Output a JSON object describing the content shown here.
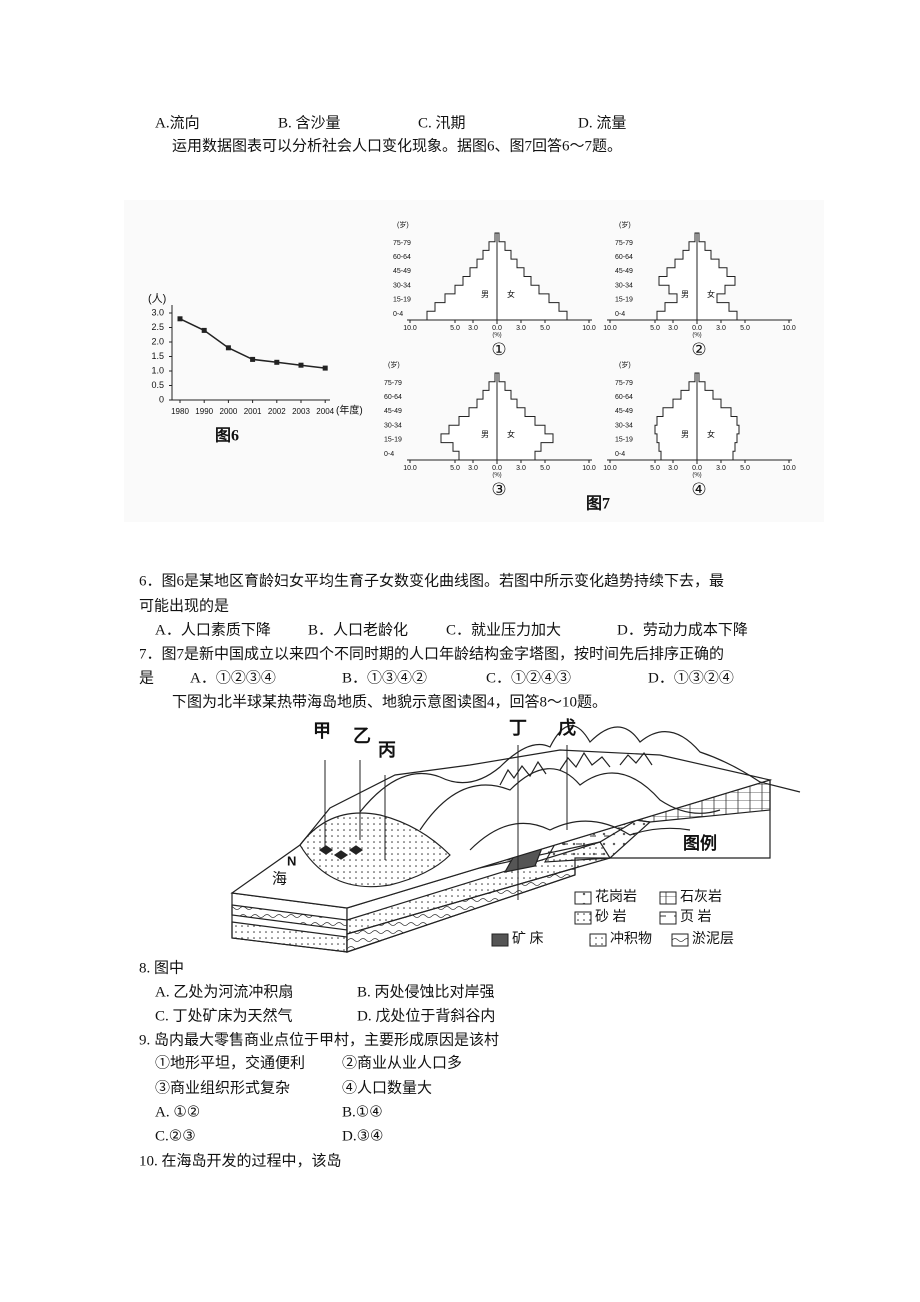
{
  "questions": {
    "q5_options": [
      "A.流向",
      "B. 含沙量",
      "C. 汛期",
      "D. 流量"
    ],
    "intro_6_7": "运用数据图表可以分析社会人口变化现象。据图6、图7回答6～7题。",
    "q6": {
      "stem": [
        "6．图6是某地区育龄妇女平均生育子女数变化曲线图。若图中所示变化趋势持续下去，最",
        "可能出现的是"
      ],
      "options": [
        "A．人口素质下降",
        "B．人口老龄化",
        "C．就业压力加大",
        "D．劳动力成本下降"
      ]
    },
    "q7": {
      "stem": [
        "7．图7是新中国成立以来四个不同时期的人口年龄结构金字塔图，按时间先后排序正确的",
        "是"
      ],
      "options": [
        "A．①②③④",
        "B．①③④②",
        "C．①②④③",
        "D．①③②④"
      ]
    },
    "intro_8_10": "下图为北半球某热带海岛地质、地貌示意图读图4，回答8～10题。",
    "q8": {
      "stem": "8. 图中",
      "options": [
        "A. 乙处为河流冲积扇",
        "B. 丙处侵蚀比对岸强",
        "C. 丁处矿床为天然气",
        "D. 戊处位于背斜谷内"
      ]
    },
    "q9": {
      "stem": "9. 岛内最大零售商业点位于甲村，主要形成原因是该村",
      "choices": [
        "①地形平坦，交通便利",
        "②商业从业人口多",
        "③商业组织形式复杂",
        "④人口数量大"
      ],
      "options": [
        "A. ①②",
        "B.①④",
        "C.②③",
        "D.③④"
      ]
    },
    "q10": {
      "stem": "10. 在海岛开发的过程中，该岛"
    }
  },
  "figure6": {
    "type": "line",
    "y_label": "(人)",
    "x_label": "(年度)",
    "caption": "图6",
    "categories": [
      "1980",
      "1990",
      "2000",
      "2001",
      "2002",
      "2003",
      "2004"
    ],
    "values": [
      2.8,
      2.4,
      1.8,
      1.4,
      1.3,
      1.2,
      1.1
    ],
    "ylim": [
      0,
      3
    ],
    "yticks": [
      0,
      0.5,
      {
        "value": 1,
        "label": "1.0"
      },
      1.5,
      {
        "value": 2,
        "label": "2.0"
      },
      2.5,
      {
        "value": 3,
        "label": "3.0"
      }
    ],
    "color": "#222222"
  },
  "figure7": {
    "age_unit": "(岁)",
    "age_groups": [
      "75-79",
      "60-64",
      "45-49",
      "30-34",
      "15-19",
      "0-4"
    ],
    "x_ticks": [
      "10.0",
      "5.0",
      "3.0",
      "0.0",
      "3.0",
      "5.0",
      "10.0"
    ],
    "x_unit": "(%)",
    "male": "男",
    "female": "女",
    "panels": [
      "①",
      "②",
      "③",
      "④"
    ],
    "caption": "图7"
  },
  "figure4": {
    "points": [
      "甲",
      "乙",
      "丙",
      "丁",
      "戊"
    ],
    "north": "N",
    "sea": "海",
    "legend_title": "图例",
    "legend": [
      "花岗岩",
      "石灰岩",
      "砂 岩",
      "页 岩",
      "矿 床",
      "冲积物",
      "淤泥层"
    ]
  }
}
